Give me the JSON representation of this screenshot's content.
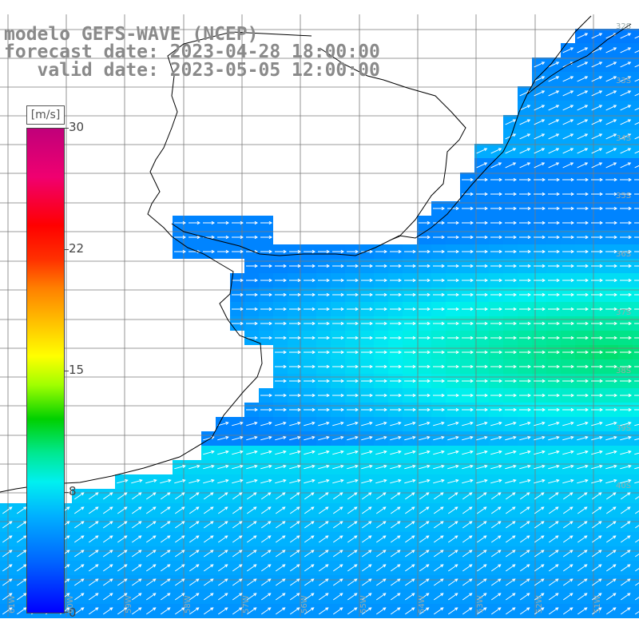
{
  "title": {
    "line1": "modelo GEFS-WAVE (NCEP)",
    "line2": "forecast date: 2023-04-28 18:00:00",
    "line3": "   valid date: 2023-05-05 12:00:00"
  },
  "legend": {
    "units": "[m/s]",
    "min": 0,
    "max": 30,
    "ticks": [
      "30",
      "22",
      "15",
      "8",
      "0"
    ],
    "colors": [
      "#0000ff",
      "#00b0ff",
      "#00f0f0",
      "#00d000",
      "#ffff00",
      "#ff8000",
      "#ff0000",
      "#c0007a"
    ]
  },
  "map": {
    "field": "wind speed with direction arrows",
    "land_color": "#ffffff",
    "graticule": "on",
    "lat_labels": [
      "32S",
      "33S",
      "34S",
      "35S",
      "36S",
      "37S",
      "38S",
      "39S",
      "40S"
    ],
    "lon_labels": [
      "61W",
      "60W",
      "59W",
      "58W",
      "57W",
      "56W",
      "55W",
      "54W",
      "53W",
      "52W",
      "51W"
    ]
  }
}
